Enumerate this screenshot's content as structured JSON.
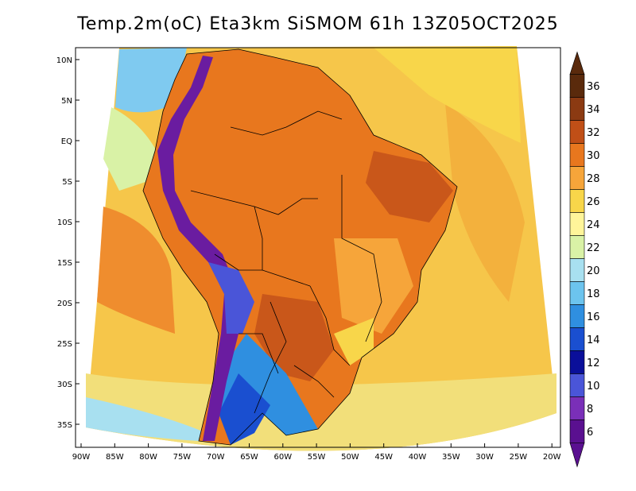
{
  "title": "Temp.2m(oC) Eta3km SiSMOM 61h 13Z05OCT2025",
  "lat_labels": [
    "10N",
    "5N",
    "EQ",
    "5S",
    "10S",
    "15S",
    "20S",
    "25S",
    "30S",
    "35S"
  ],
  "lon_labels": [
    "90W",
    "85W",
    "80W",
    "75W",
    "70W",
    "65W",
    "60W",
    "55W",
    "50W",
    "45W",
    "40W",
    "35W",
    "30W",
    "25W",
    "20W"
  ],
  "colorbar": {
    "labels": [
      "36",
      "34",
      "32",
      "30",
      "28",
      "26",
      "24",
      "22",
      "20",
      "18",
      "16",
      "14",
      "12",
      "10",
      "8",
      "6"
    ],
    "colors": [
      "#5a2a0c",
      "#8b3a12",
      "#c04f17",
      "#e8771e",
      "#f6a53a",
      "#f8d64a",
      "#fff59a",
      "#d9f2a6",
      "#a8e0f0",
      "#6cc4ee",
      "#2f8fe0",
      "#1a4fd0",
      "#0a0f9a",
      "#4a55d8",
      "#7a2fb8",
      "#5a1090"
    ]
  }
}
